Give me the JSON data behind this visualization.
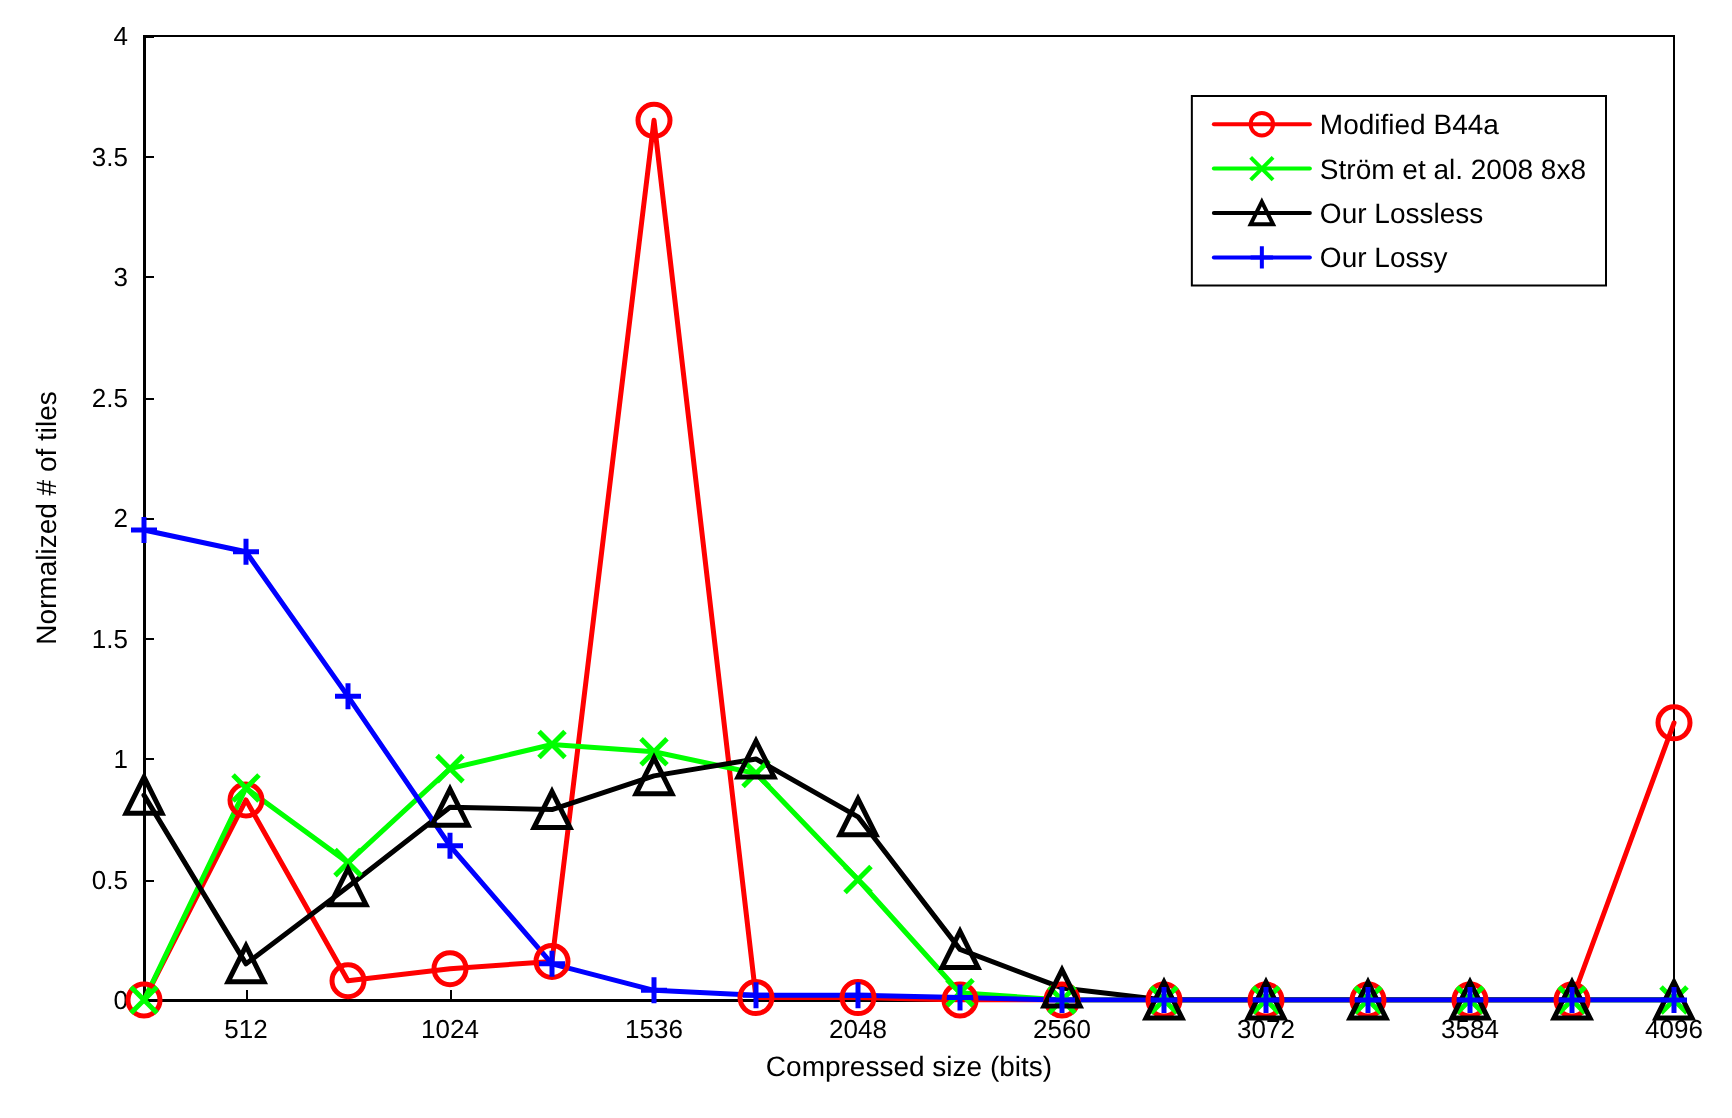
{
  "chart_data": {
    "type": "line",
    "xlabel": "Compressed size (bits)",
    "ylabel": "Normalized # of tiles",
    "x": [
      256,
      512,
      768,
      1024,
      1280,
      1536,
      1792,
      2048,
      2304,
      2560,
      2816,
      3072,
      3328,
      3584,
      3840,
      4096
    ],
    "xlim": [
      256,
      4096
    ],
    "xticks": [
      512,
      1024,
      1536,
      2048,
      2560,
      3072,
      3584,
      4096
    ],
    "ylim": [
      0,
      4
    ],
    "yticks": [
      0,
      0.5,
      1,
      1.5,
      2,
      2.5,
      3,
      3.5,
      4
    ],
    "grid": false,
    "legend": "top right",
    "series": [
      {
        "name": "Modified B44a",
        "color": "#ff0000",
        "marker": "circle",
        "values": [
          0,
          0.83,
          0.08,
          0.13,
          0.16,
          3.65,
          0.01,
          0.01,
          0,
          0,
          0,
          0,
          0,
          0,
          0,
          1.15
        ]
      },
      {
        "name": "Ström et al. 2008 8x8",
        "color": "#00ff00",
        "marker": "cross",
        "values": [
          0,
          0.88,
          0.57,
          0.96,
          1.06,
          1.03,
          0.94,
          0.5,
          0.03,
          0,
          0,
          0,
          0,
          0,
          0,
          0
        ]
      },
      {
        "name": "Our Lossless",
        "color": "#000000",
        "marker": "triangle",
        "values": [
          0.85,
          0.15,
          0.47,
          0.8,
          0.79,
          0.93,
          1,
          0.76,
          0.21,
          0.05,
          0,
          0,
          0,
          0,
          0,
          0
        ]
      },
      {
        "name": "Our Lossy",
        "color": "#0000ff",
        "marker": "plus",
        "values": [
          1.95,
          1.86,
          1.26,
          0.64,
          0.15,
          0.04,
          0.02,
          0.02,
          0.01,
          0,
          0,
          0,
          0,
          0,
          0,
          0
        ]
      }
    ]
  }
}
